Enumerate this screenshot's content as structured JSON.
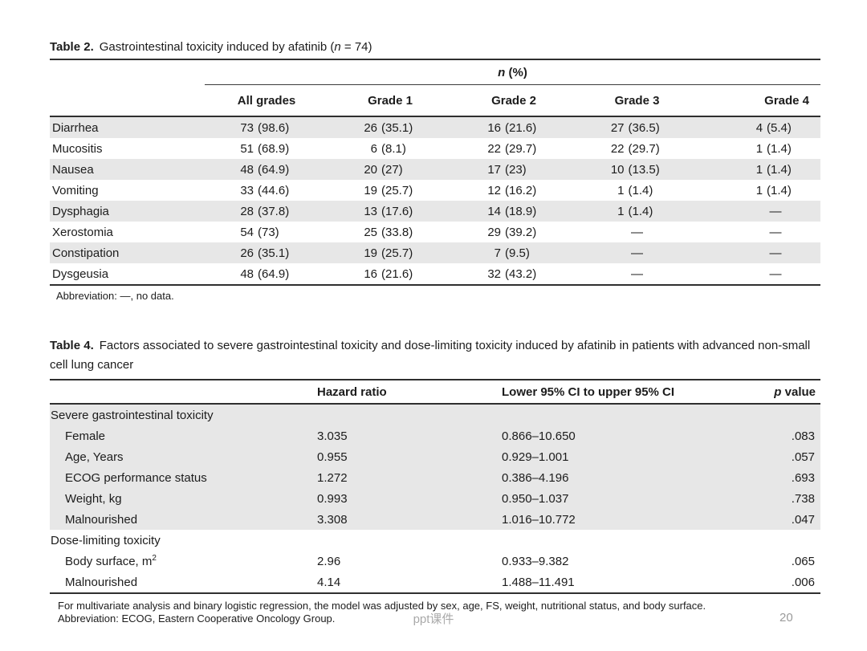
{
  "table2": {
    "label": "Table 2.",
    "caption_pre": "Gastrointestinal toxicity induced by afatinib (",
    "n_symbol": "n",
    "caption_post": " = 74)",
    "nspan_n": "n",
    "nspan_rest": " (%)",
    "columns": [
      "All grades",
      "Grade 1",
      "Grade 2",
      "Grade 3",
      "Grade 4"
    ],
    "rows": [
      {
        "label": "Diarrhea",
        "cells": [
          "73 (98.6)",
          "26 (35.1)",
          "16 (21.6)",
          "27 (36.5)",
          "4 (5.4)"
        ]
      },
      {
        "label": "Mucositis",
        "cells": [
          "51 (68.9)",
          "6 (8.1)",
          "22 (29.7)",
          "22 (29.7)",
          "1 (1.4)"
        ]
      },
      {
        "label": "Nausea",
        "cells": [
          "48 (64.9)",
          "20 (27)",
          "17 (23)",
          "10 (13.5)",
          "1 (1.4)"
        ]
      },
      {
        "label": "Vomiting",
        "cells": [
          "33 (44.6)",
          "19 (25.7)",
          "12 (16.2)",
          "1 (1.4)",
          "1 (1.4)"
        ]
      },
      {
        "label": "Dysphagia",
        "cells": [
          "28 (37.8)",
          "13 (17.6)",
          "14 (18.9)",
          "1 (1.4)",
          "—"
        ]
      },
      {
        "label": "Xerostomia",
        "cells": [
          "54 (73)",
          "25 (33.8)",
          "29 (39.2)",
          "—",
          "—"
        ]
      },
      {
        "label": "Constipation",
        "cells": [
          "26 (35.1)",
          "19 (25.7)",
          "7 (9.5)",
          "—",
          "—"
        ]
      },
      {
        "label": "Dysgeusia",
        "cells": [
          "48 (64.9)",
          "16 (21.6)",
          "32 (43.2)",
          "—",
          "—"
        ]
      }
    ],
    "note": "Abbreviation: —, no data."
  },
  "table4": {
    "label": "Table 4.",
    "caption": "Factors associated to severe gastrointestinal toxicity and dose-limiting toxicity induced by afatinib in patients with advanced non-small cell lung cancer",
    "headers": {
      "hazard": "Hazard ratio",
      "ci": "Lower 95% CI to upper 95% CI",
      "p_italic": "p",
      "p_rest": " value"
    },
    "sections": [
      {
        "title": "Severe gastrointestinal toxicity",
        "shaded": true,
        "rows": [
          {
            "label": "Female",
            "hr": "3.035",
            "ci": "0.866–10.650",
            "p": ".083"
          },
          {
            "label": "Age, Years",
            "hr": "0.955",
            "ci": "0.929–1.001",
            "p": ".057"
          },
          {
            "label": "ECOG performance status",
            "hr": "1.272",
            "ci": "0.386–4.196",
            "p": ".693"
          },
          {
            "label": "Weight, kg",
            "hr": "0.993",
            "ci": "0.950–1.037",
            "p": ".738"
          },
          {
            "label": "Malnourished",
            "hr": "3.308",
            "ci": "1.016–10.772",
            "p": ".047"
          }
        ]
      },
      {
        "title": "Dose-limiting toxicity",
        "shaded": false,
        "rows": [
          {
            "label": "Body surface, m",
            "label_sup": "2",
            "hr": "2.96",
            "ci": "0.933–9.382",
            "p": ".065"
          },
          {
            "label": "Malnourished",
            "hr": "4.14",
            "ci": "1.488–11.491",
            "p": ".006"
          }
        ]
      }
    ],
    "note1": "For multivariate analysis and binary logistic regression, the model was adjusted by sex, age, FS, weight, nutritional status, and body surface.",
    "note2": "Abbreviation: ECOG, Eastern Cooperative Oncology Group."
  },
  "footer": {
    "watermark": "ppt课件",
    "page_number": "20"
  }
}
